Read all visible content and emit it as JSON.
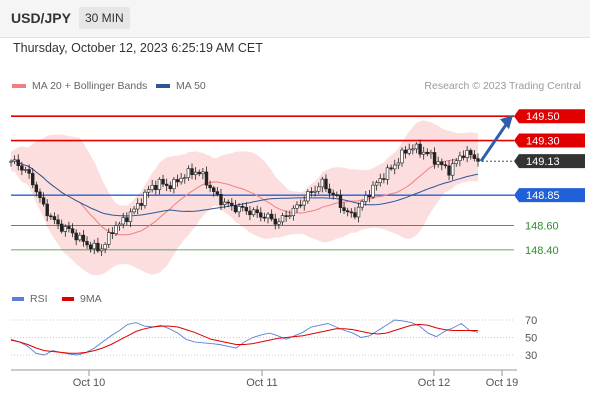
{
  "header": {
    "symbol": "USD/JPY",
    "timeframe": "30 MIN"
  },
  "timestamp": "Thursday, October 12, 2023 6:25:19 AM CET",
  "legend": {
    "ma20": {
      "label": "MA 20 + Bollinger Bands",
      "color": "#f08080"
    },
    "ma50": {
      "label": "MA 50",
      "color": "#2f5597"
    }
  },
  "credit": "Research © 2023 Trading Central",
  "rsi_legend": {
    "rsi": {
      "label": "RSI",
      "color": "#5b7fd6"
    },
    "ma": {
      "label": "9MA",
      "color": "#e00000"
    }
  },
  "chart_data": [
    {
      "type": "candlestick",
      "ylim": [
        148.3,
        149.65
      ],
      "x_ticks": [
        "Oct 10",
        "Oct 11",
        "Oct 12",
        "Oct 19"
      ],
      "levels": [
        {
          "value": 149.5,
          "label": "149.50",
          "style": "resistance",
          "color": "#e00000"
        },
        {
          "value": 149.3,
          "label": "149.30",
          "style": "resistance",
          "color": "#e00000"
        },
        {
          "value": 149.13,
          "label": "149.13",
          "style": "last",
          "color": "#333333"
        },
        {
          "value": 148.85,
          "label": "148.85",
          "style": "pivot",
          "color": "#2060d8"
        },
        {
          "value": 148.6,
          "label": "148.60",
          "style": "support",
          "color": "#2e8b2e"
        },
        {
          "value": 148.4,
          "label": "148.40",
          "style": "support",
          "color": "#2e8b2e"
        }
      ],
      "arrow": {
        "from": 149.13,
        "to": 149.5,
        "direction": "up",
        "color": "#2f5fa8"
      },
      "price_path": [
        149.13,
        149.1,
        149.05,
        148.95,
        148.8,
        148.7,
        148.62,
        148.58,
        148.56,
        148.5,
        148.46,
        148.42,
        148.4,
        148.48,
        148.6,
        148.62,
        148.7,
        148.75,
        148.85,
        148.92,
        148.95,
        148.93,
        148.94,
        149.0,
        149.03,
        149.05,
        149.0,
        148.9,
        148.82,
        148.78,
        148.75,
        148.74,
        148.72,
        148.7,
        148.68,
        148.66,
        148.62,
        148.68,
        148.72,
        148.78,
        148.85,
        148.9,
        148.95,
        148.88,
        148.82,
        148.72,
        148.68,
        148.75,
        148.85,
        148.92,
        149.0,
        149.05,
        149.12,
        149.2,
        149.25,
        149.22,
        149.2,
        149.15,
        149.1,
        149.05,
        149.12,
        149.2,
        149.18,
        149.13
      ]
    },
    {
      "type": "line",
      "title": "RSI",
      "y_ticks": [
        70,
        50,
        30
      ],
      "ylim": [
        20,
        80
      ],
      "series": [
        {
          "name": "RSI",
          "values": [
            48,
            45,
            40,
            32,
            30,
            35,
            33,
            31,
            30,
            33,
            38,
            45,
            52,
            58,
            65,
            67,
            63,
            62,
            64,
            60,
            55,
            48,
            45,
            44,
            43,
            42,
            40,
            38,
            45,
            50,
            53,
            55,
            52,
            48,
            52,
            56,
            62,
            64,
            66,
            62,
            58,
            55,
            50,
            52,
            58,
            64,
            70,
            69,
            67,
            63,
            55,
            51,
            57,
            61,
            66,
            58,
            56
          ]
        },
        {
          "name": "9MA",
          "values": [
            47,
            45,
            42,
            38,
            35,
            34,
            33,
            32,
            32,
            33,
            35,
            38,
            42,
            47,
            52,
            57,
            60,
            62,
            63,
            63,
            62,
            59,
            56,
            52,
            48,
            46,
            44,
            42,
            42,
            43,
            45,
            47,
            49,
            50,
            51,
            52,
            54,
            56,
            58,
            60,
            60,
            59,
            57,
            55,
            54,
            55,
            58,
            61,
            64,
            65,
            64,
            61,
            59,
            58,
            58,
            58,
            58
          ]
        }
      ]
    }
  ]
}
